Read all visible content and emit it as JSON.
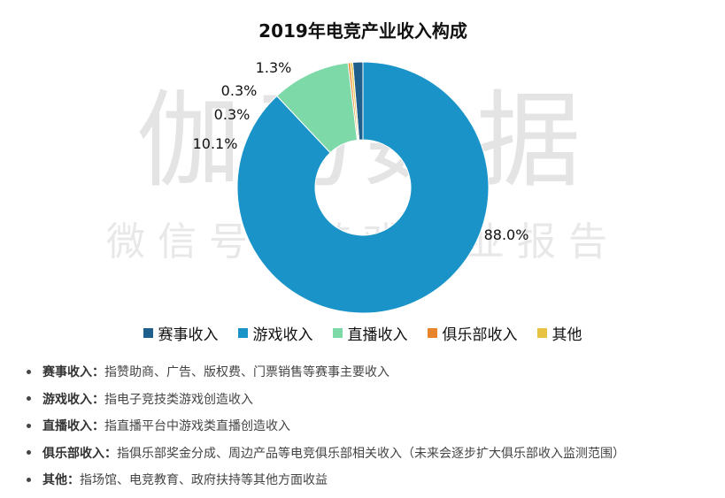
{
  "chart_data": {
    "type": "pie",
    "title": "2019年电竞产业收入构成",
    "slices": [
      {
        "label": "赛事收入",
        "value": 1.3,
        "value_label": "1.3%",
        "color": "#1f5f8b"
      },
      {
        "label": "游戏收入",
        "value": 88.0,
        "value_label": "88.0%",
        "color": "#1a93c8"
      },
      {
        "label": "直播收入",
        "value": 10.1,
        "value_label": "10.1%",
        "color": "#7dd9a8"
      },
      {
        "label": "俱乐部收入",
        "value": 0.3,
        "value_label": "0.3%",
        "color": "#e8842a"
      },
      {
        "label": "其他",
        "value": 0.3,
        "value_label": "0.3%",
        "color": "#e8c343"
      }
    ],
    "donut": true,
    "legend": "bottom"
  },
  "watermark": {
    "line1": "伽马数据",
    "line2": "微信号：游戏产业报告"
  },
  "notes": [
    {
      "term": "赛事收入：",
      "text": "指赞助商、广告、版权费、门票销售等赛事主要收入"
    },
    {
      "term": "游戏收入：",
      "text": "指电子竞技类游戏创造收入"
    },
    {
      "term": "直播收入：",
      "text": "指直播平台中游戏类直播创造收入"
    },
    {
      "term": "俱乐部收入：",
      "text": "指俱乐部奖金分成、周边产品等电竞俱乐部相关收入（未来会逐步扩大俱乐部收入监测范围）"
    },
    {
      "term": "其他：",
      "text": "指场馆、电竞教育、政府扶持等其他方面收益"
    }
  ]
}
